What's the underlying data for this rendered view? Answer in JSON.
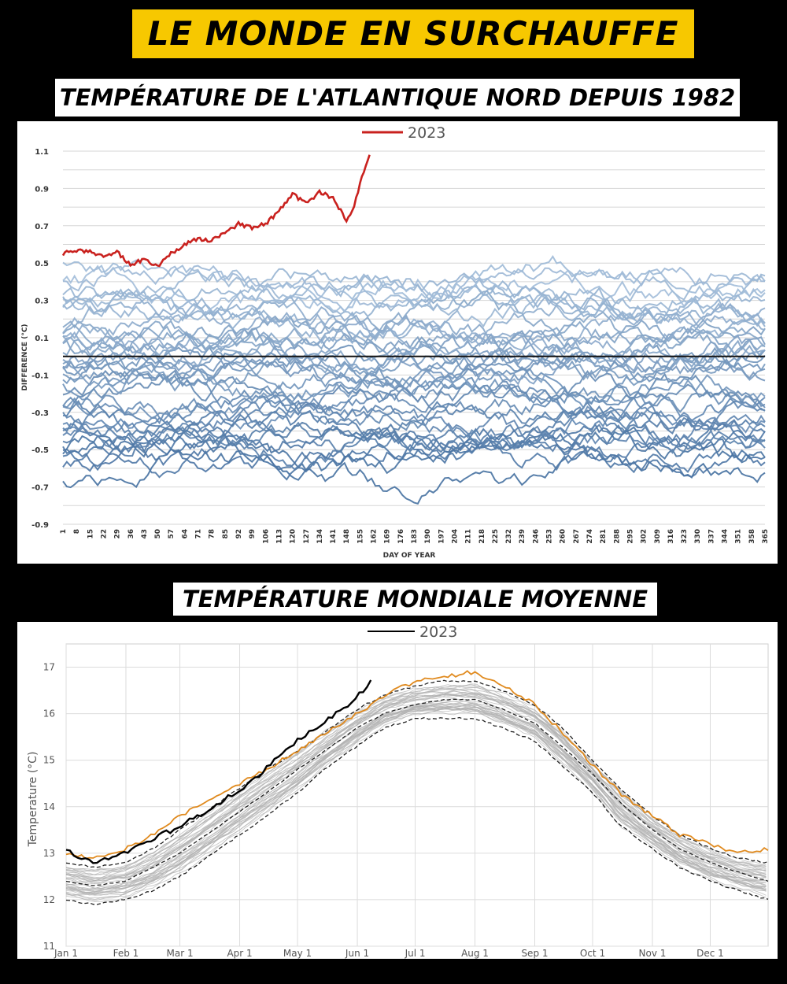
{
  "header": {
    "title": "LE MONDE EN SURCHAUFFE",
    "subtitle_1": "TEMPÉRATURE DE L'ATLANTIQUE NORD DEPUIS 1982",
    "subtitle_2": "TEMPÉRATURE MONDIALE MOYENNE"
  },
  "colors": {
    "banner": "#f7c800",
    "highlight_2023_sst": "#c9211e",
    "past_years_blue": "#3a6ea5",
    "line_2023_global": "#000000",
    "line_2022_global": "#e08a1e",
    "past_years_grey": "#b0b0b0"
  },
  "chart_data": [
    {
      "type": "line",
      "legend": "2023",
      "legend_placement": "top-center",
      "xlabel": "DAY OF YEAR",
      "ylabel": "DIFFERENCE (°C)",
      "xlim": [
        1,
        365
      ],
      "ylim": [
        -0.9,
        1.1
      ],
      "x_ticks": [
        1,
        8,
        15,
        22,
        29,
        36,
        43,
        50,
        57,
        64,
        71,
        78,
        85,
        92,
        99,
        106,
        113,
        120,
        127,
        134,
        141,
        148,
        155,
        162,
        169,
        176,
        183,
        190,
        197,
        204,
        211,
        218,
        225,
        232,
        239,
        246,
        253,
        260,
        267,
        274,
        281,
        288,
        295,
        302,
        309,
        316,
        323,
        330,
        337,
        344,
        351,
        358,
        365
      ],
      "y_ticks": [
        1.1,
        0.9,
        0.7,
        0.5,
        0.3,
        0.1,
        -0.1,
        -0.3,
        -0.5,
        -0.7,
        -0.9
      ],
      "y_tick_labels": [
        "1.1",
        "0.9",
        "0.7",
        "0.5",
        "0.3",
        "0.1",
        "-0.1",
        "-0.3",
        "-0.5",
        "-0.7",
        "-0.9"
      ],
      "grid": true,
      "zero_line": true,
      "highlight_series": {
        "name": "2023",
        "x": [
          1,
          8,
          15,
          22,
          29,
          36,
          43,
          50,
          57,
          64,
          71,
          78,
          85,
          92,
          99,
          106,
          113,
          120,
          127,
          134,
          141,
          148,
          152,
          155,
          160
        ],
        "y": [
          0.55,
          0.57,
          0.56,
          0.54,
          0.56,
          0.49,
          0.52,
          0.48,
          0.55,
          0.6,
          0.63,
          0.62,
          0.66,
          0.71,
          0.69,
          0.71,
          0.78,
          0.87,
          0.82,
          0.88,
          0.85,
          0.73,
          0.8,
          0.93,
          1.08
        ]
      },
      "background_series_count": 41
    },
    {
      "type": "line",
      "legend": "2023",
      "legend_placement": "top-center",
      "ylabel": "Temperature (°C)",
      "ylim": [
        11,
        17.5
      ],
      "y_ticks": [
        17,
        16,
        15,
        14,
        13,
        12,
        11
      ],
      "y_tick_labels": [
        "17",
        "16",
        "15",
        "14",
        "13",
        "12",
        "11"
      ],
      "x_tick_labels": [
        "Jan 1",
        "Feb 1",
        "Mar 1",
        "Apr 1",
        "May 1",
        "Jun 1",
        "Jul 1",
        "Aug 1",
        "Sep 1",
        "Oct 1",
        "Nov 1",
        "Dec 1"
      ],
      "x_tick_days": [
        1,
        32,
        60,
        91,
        121,
        152,
        182,
        213,
        244,
        274,
        305,
        335
      ],
      "grid": true,
      "series": [
        {
          "name": "2023",
          "x": [
            1,
            8,
            15,
            22,
            29,
            36,
            43,
            50,
            57,
            64,
            71,
            78,
            85,
            92,
            99,
            106,
            113,
            120,
            127,
            134,
            141,
            148,
            155,
            160
          ],
          "y": [
            13.1,
            12.9,
            12.8,
            12.9,
            13.0,
            13.1,
            13.2,
            13.4,
            13.5,
            13.7,
            13.8,
            14.0,
            14.2,
            14.4,
            14.6,
            14.9,
            15.1,
            15.4,
            15.6,
            15.8,
            16.0,
            16.2,
            16.5,
            16.8
          ]
        },
        {
          "x": [
            1,
            15,
            32,
            46,
            60,
            74,
            91,
            105,
            121,
            135,
            152,
            166,
            182,
            196,
            213,
            227,
            244,
            258,
            274,
            288,
            305,
            319,
            335,
            349,
            365
          ],
          "y": [
            13.0,
            12.9,
            13.1,
            13.4,
            13.8,
            14.1,
            14.5,
            14.8,
            15.2,
            15.6,
            16.0,
            16.4,
            16.7,
            16.8,
            16.9,
            16.6,
            16.2,
            15.6,
            14.9,
            14.3,
            13.8,
            13.4,
            13.2,
            13.0,
            13.1
          ]
        },
        {
          "x": [
            1,
            15,
            32,
            46,
            60,
            74,
            91,
            105,
            121,
            135,
            152,
            166,
            182,
            196,
            213,
            227,
            244,
            258,
            274,
            288,
            305,
            319,
            335,
            349,
            365
          ],
          "y": [
            12.4,
            12.3,
            12.4,
            12.7,
            13.0,
            13.4,
            13.9,
            14.3,
            14.8,
            15.2,
            15.7,
            16.0,
            16.2,
            16.3,
            16.3,
            16.1,
            15.8,
            15.3,
            14.7,
            14.1,
            13.5,
            13.1,
            12.8,
            12.6,
            12.4
          ]
        },
        {
          "x": [
            1,
            15,
            32,
            46,
            60,
            74,
            91,
            105,
            121,
            135,
            152,
            166,
            182,
            196,
            213,
            227,
            244,
            258,
            274,
            288,
            305,
            319,
            335,
            349,
            365
          ],
          "y": [
            12.8,
            12.7,
            12.8,
            13.1,
            13.5,
            13.9,
            14.4,
            14.8,
            15.2,
            15.6,
            16.1,
            16.4,
            16.6,
            16.7,
            16.7,
            16.5,
            16.2,
            15.7,
            15.0,
            14.4,
            13.8,
            13.4,
            13.1,
            12.9,
            12.8
          ]
        },
        {
          "x": [
            1,
            15,
            32,
            46,
            60,
            74,
            91,
            105,
            121,
            135,
            152,
            166,
            182,
            196,
            213,
            227,
            244,
            258,
            274,
            288,
            305,
            319,
            335,
            349,
            365
          ],
          "y": [
            12.0,
            11.9,
            12.0,
            12.2,
            12.5,
            12.9,
            13.4,
            13.8,
            14.3,
            14.8,
            15.3,
            15.7,
            15.9,
            15.9,
            15.9,
            15.7,
            15.4,
            14.9,
            14.3,
            13.6,
            13.1,
            12.7,
            12.4,
            12.2,
            12.0
          ]
        }
      ],
      "background_series_count": 40
    }
  ]
}
